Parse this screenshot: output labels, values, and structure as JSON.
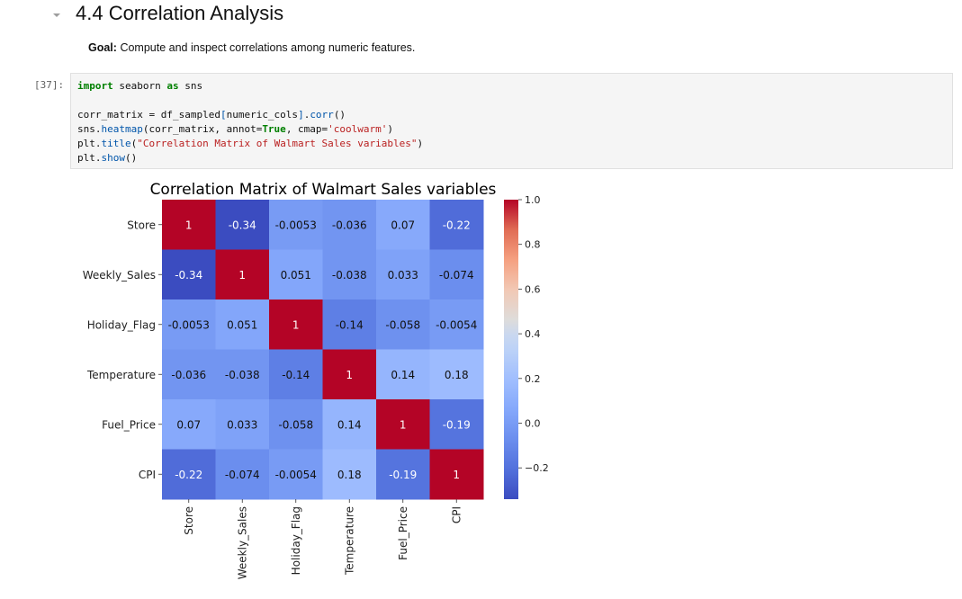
{
  "section": {
    "title": "4.4 Correlation Analysis",
    "goal_label": "Goal:",
    "goal_text": "Compute and inspect correlations among numeric features."
  },
  "cell": {
    "prompt": "[37]:",
    "code": {
      "line1": {
        "kw1": "import",
        "t1": " seaborn ",
        "kw2": "as",
        "t2": " sns"
      },
      "line2": {
        "t1": "corr_matrix = df_sampled",
        "b1": "[",
        "t2": "numeric_cols",
        "b2": "]",
        "t3": ".",
        "f1": "corr",
        "t4": "()"
      },
      "line3": {
        "t1": "sns.",
        "f1": "heatmap",
        "t2": "(corr_matrix, annot=",
        "k1": "True",
        "t3": ", cmap=",
        "s1": "'coolwarm'",
        "t4": ")"
      },
      "line4": {
        "t1": "plt.",
        "f1": "title",
        "t2": "(",
        "s1": "\"Correlation Matrix of Walmart Sales variables\"",
        "t3": ")"
      },
      "line5": {
        "t1": "plt.",
        "f1": "show",
        "t2": "()"
      }
    }
  },
  "chart_data": {
    "type": "heatmap",
    "title": "Correlation Matrix of Walmart Sales variables",
    "labels": [
      "Store",
      "Weekly_Sales",
      "Holiday_Flag",
      "Temperature",
      "Fuel_Price",
      "CPI"
    ],
    "values": [
      [
        1,
        -0.34,
        -0.0053,
        -0.036,
        0.07,
        -0.22
      ],
      [
        -0.34,
        1,
        0.051,
        -0.038,
        0.033,
        -0.074
      ],
      [
        -0.0053,
        0.051,
        1,
        -0.14,
        -0.058,
        -0.0054
      ],
      [
        -0.036,
        -0.038,
        -0.14,
        1,
        0.14,
        0.18
      ],
      [
        0.07,
        0.033,
        -0.058,
        0.14,
        1,
        -0.19
      ],
      [
        -0.22,
        -0.074,
        -0.0054,
        0.18,
        -0.19,
        1
      ]
    ],
    "annotations": [
      [
        "1",
        "-0.34",
        "-0.0053",
        "-0.036",
        "0.07",
        "-0.22"
      ],
      [
        "-0.34",
        "1",
        "0.051",
        "-0.038",
        "0.033",
        "-0.074"
      ],
      [
        "-0.0053",
        "0.051",
        "1",
        "-0.14",
        "-0.058",
        "-0.0054"
      ],
      [
        "-0.036",
        "-0.038",
        "-0.14",
        "1",
        "0.14",
        "0.18"
      ],
      [
        "0.07",
        "0.033",
        "-0.058",
        "0.14",
        "1",
        "-0.19"
      ],
      [
        "-0.22",
        "-0.074",
        "-0.0054",
        "0.18",
        "-0.19",
        "1"
      ]
    ],
    "colormap": "coolwarm",
    "vmin": -0.34,
    "vmax": 1.0,
    "colorbar_ticks": [
      1.0,
      0.8,
      0.6,
      0.4,
      0.2,
      0.0,
      -0.2
    ],
    "colorbar_tick_labels": [
      "1.0",
      "0.8",
      "0.6",
      "0.4",
      "0.2",
      "0.0",
      "−0.2"
    ]
  }
}
